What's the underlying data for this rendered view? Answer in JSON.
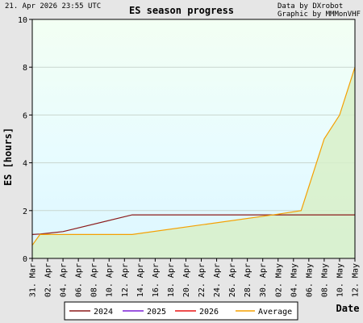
{
  "header": {
    "timestamp": "21. Apr 2026 23:55 UTC",
    "title": "ES season progress",
    "credit_data": "Data by DXrobot",
    "credit_graphic": "Graphic by MMMonVHF"
  },
  "colors": {
    "2024": "#8b1a1a",
    "2025": "#7b1fd6",
    "2026": "#e81414",
    "Average": "#f5a000",
    "plot_background": "#eafcff",
    "average_fill": "#d8f0c8"
  },
  "chart_data": {
    "type": "line",
    "title": "ES season progress",
    "xlabel": "Date",
    "ylabel": "ES [hours]",
    "ylim": [
      0,
      10
    ],
    "yticks": [
      "0",
      "2",
      "4",
      "6",
      "8",
      "10"
    ],
    "xlim": [
      "31. Mar",
      "12. May"
    ],
    "xticks": [
      "31. Mar",
      "02. Apr",
      "04. Apr",
      "06. Apr",
      "08. Apr",
      "10. Apr",
      "12. Apr",
      "14. Apr",
      "16. Apr",
      "18. Apr",
      "20. Apr",
      "22. Apr",
      "24. Apr",
      "26. Apr",
      "28. Apr",
      "30. Apr",
      "02. May",
      "04. May",
      "06. May",
      "08. May",
      "10. May",
      "12. May"
    ],
    "grid": "horizontal",
    "legend_position": "bottom",
    "series": [
      {
        "name": "2024",
        "color": "#8b1a1a",
        "points": [
          [
            "31. Mar",
            1.0
          ],
          [
            "01. Apr",
            1.02
          ],
          [
            "02. Apr",
            1.05
          ],
          [
            "04. Apr",
            1.12
          ],
          [
            "13. Apr",
            1.82
          ],
          [
            "12. May",
            1.82
          ]
        ]
      },
      {
        "name": "2025",
        "color": "#7b1fd6",
        "points": []
      },
      {
        "name": "2026",
        "color": "#e81414",
        "points": []
      },
      {
        "name": "Average",
        "color": "#f5a000",
        "fill": true,
        "points": [
          [
            "31. Mar",
            0.55
          ],
          [
            "01. Apr",
            1.0
          ],
          [
            "02. Apr",
            1.0
          ],
          [
            "13. Apr",
            1.0
          ],
          [
            "02. May",
            1.85
          ],
          [
            "05. May",
            2.0
          ],
          [
            "08. May",
            5.0
          ],
          [
            "10. May",
            6.0
          ],
          [
            "12. May",
            8.0
          ]
        ]
      }
    ]
  }
}
